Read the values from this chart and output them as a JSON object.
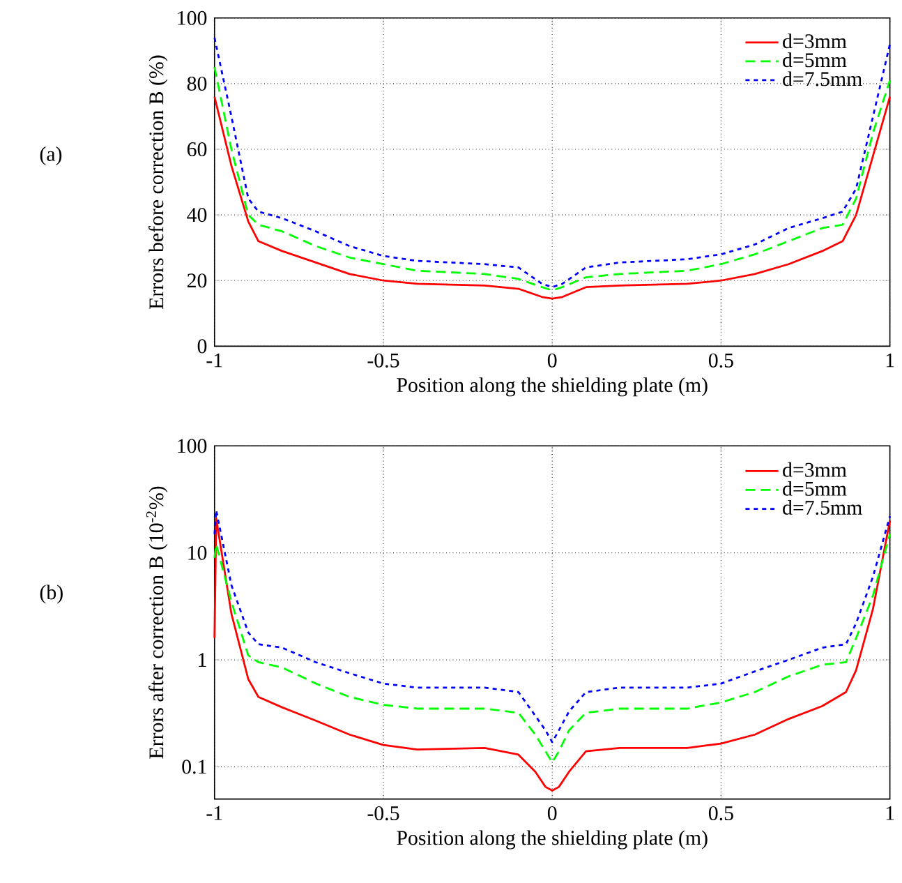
{
  "chart_data": [
    {
      "type": "line",
      "xlabel": "Position along the shielding plate (m)",
      "ylabel": "Errors before correction B (%)",
      "annotations": [
        "(a)"
      ],
      "xlim": [
        -1,
        1
      ],
      "ylim": [
        0,
        100
      ],
      "xticks": [
        -1,
        -0.5,
        0,
        0.5,
        1
      ],
      "yticks": [
        0,
        20,
        40,
        60,
        80,
        100
      ],
      "grid": true,
      "legend": "top right",
      "x": [
        -1,
        -0.95,
        -0.9,
        -0.87,
        -0.8,
        -0.7,
        -0.6,
        -0.5,
        -0.4,
        -0.2,
        -0.1,
        -0.03,
        0,
        0.03,
        0.1,
        0.2,
        0.4,
        0.5,
        0.6,
        0.7,
        0.8,
        0.86,
        0.9,
        0.95,
        1
      ],
      "series": [
        {
          "name": "d=3mm",
          "color": "#ff0000",
          "line_style": "solid",
          "values": [
            76,
            55,
            38,
            32,
            29,
            25.5,
            22,
            20,
            19,
            18.5,
            17.5,
            15,
            14.5,
            15,
            18,
            18.5,
            19,
            20,
            22,
            25,
            29,
            32,
            40,
            58,
            76
          ]
        },
        {
          "name": "d=5mm",
          "color": "#00ff00",
          "line_style": "dashed",
          "values": [
            85,
            60,
            40,
            37,
            35,
            30.5,
            27,
            25,
            23,
            22,
            20.5,
            18,
            17,
            18,
            21,
            22,
            23,
            25,
            28,
            32,
            36,
            37,
            45,
            65,
            81
          ]
        },
        {
          "name": "d=7.5mm",
          "color": "#0000ff",
          "line_style": "dotted",
          "values": [
            94,
            70,
            45,
            41,
            39,
            35,
            30.5,
            27.5,
            26,
            25,
            24,
            19,
            18,
            19,
            24,
            25.5,
            26.5,
            28,
            31,
            36,
            39,
            41,
            48,
            70,
            92
          ]
        }
      ]
    },
    {
      "type": "line",
      "xlabel": "Position along the shielding plate (m)",
      "ylabel": "Errors after correction B (10$^{-2}$%)",
      "annotations": [
        "(b)"
      ],
      "log": "y",
      "xlim": [
        -1,
        1
      ],
      "ylim": [
        0.05,
        100
      ],
      "xticks": [
        -1,
        -0.5,
        0,
        0.5,
        1
      ],
      "yticks": [
        0.1,
        1,
        10,
        100
      ],
      "grid": true,
      "legend": "top right",
      "x": [
        -1,
        -0.995,
        -0.95,
        -0.9,
        -0.87,
        -0.8,
        -0.7,
        -0.6,
        -0.5,
        -0.4,
        -0.2,
        -0.1,
        -0.05,
        -0.02,
        0,
        0.02,
        0.05,
        0.1,
        0.2,
        0.4,
        0.5,
        0.6,
        0.7,
        0.8,
        0.87,
        0.9,
        0.95,
        1
      ],
      "series": [
        {
          "name": "d=3mm",
          "color": "#ff0000",
          "line_style": "solid",
          "values": [
            1.6,
            21,
            2.7,
            0.66,
            0.45,
            0.36,
            0.27,
            0.2,
            0.16,
            0.145,
            0.15,
            0.13,
            0.09,
            0.065,
            0.06,
            0.065,
            0.09,
            0.14,
            0.15,
            0.15,
            0.165,
            0.2,
            0.28,
            0.37,
            0.5,
            0.8,
            3,
            20
          ]
        },
        {
          "name": "d=5mm",
          "color": "#00ff00",
          "line_style": "dashed",
          "values": [
            9,
            12,
            3.5,
            1.1,
            0.95,
            0.85,
            0.6,
            0.45,
            0.38,
            0.35,
            0.35,
            0.32,
            0.2,
            0.14,
            0.11,
            0.14,
            0.22,
            0.32,
            0.35,
            0.35,
            0.4,
            0.5,
            0.7,
            0.9,
            0.95,
            1.6,
            4,
            15
          ]
        },
        {
          "name": "d=7.5mm",
          "color": "#0000ff",
          "line_style": "dotted",
          "values": [
            15,
            25,
            5,
            1.8,
            1.4,
            1.3,
            0.95,
            0.75,
            0.6,
            0.55,
            0.55,
            0.5,
            0.3,
            0.22,
            0.17,
            0.22,
            0.33,
            0.5,
            0.55,
            0.55,
            0.6,
            0.78,
            1.0,
            1.3,
            1.4,
            2.2,
            6,
            22
          ]
        }
      ]
    }
  ]
}
